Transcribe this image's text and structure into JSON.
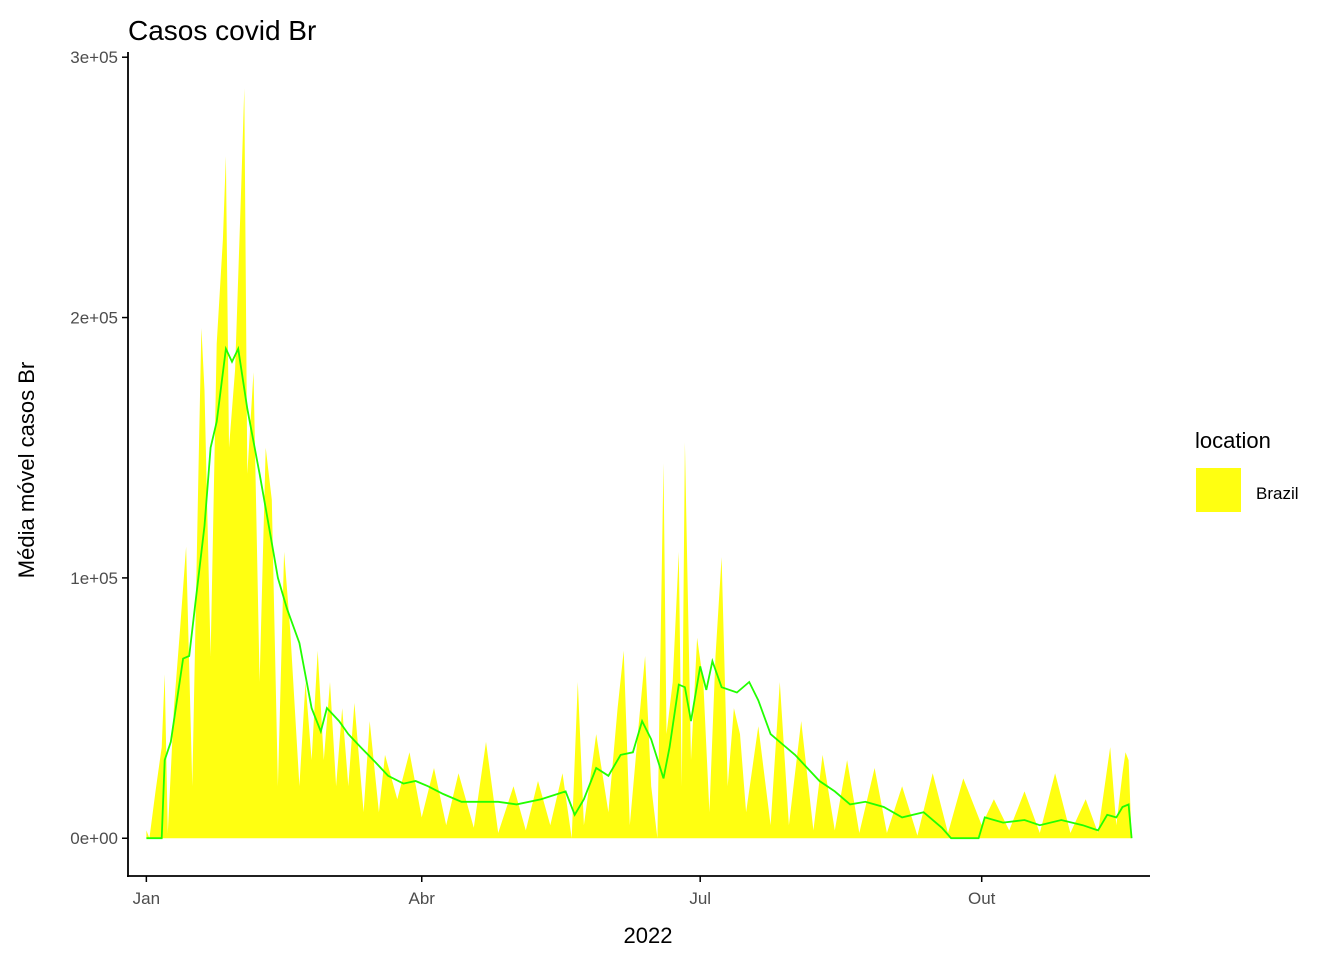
{
  "colors": {
    "area_fill": "#FFFF11",
    "line": "#22FF00",
    "axis": "#000000",
    "tick_text": "#4d4d4d"
  },
  "chart_data": {
    "type": "area",
    "title": "Casos covid Br",
    "xlabel": "2022",
    "ylabel": "Média móvel casos Br",
    "x_scale": "date",
    "xlim": [
      "2021-12-26",
      "2022-11-25"
    ],
    "ylim": [
      -14500,
      302000
    ],
    "grid": false,
    "x_ticks": [
      {
        "date": "2022-01-01",
        "label": "Jan"
      },
      {
        "date": "2022-04-01",
        "label": "Abr"
      },
      {
        "date": "2022-07-01",
        "label": "Jul"
      },
      {
        "date": "2022-10-01",
        "label": "Out"
      }
    ],
    "y_ticks": [
      {
        "value": 0,
        "label": "0e+00"
      },
      {
        "value": 100000,
        "label": "1e+05"
      },
      {
        "value": 200000,
        "label": "2e+05"
      },
      {
        "value": 300000,
        "label": "3e+05"
      }
    ],
    "legend": {
      "title": "location",
      "position": "right",
      "entries": [
        {
          "label": "Brazil"
        }
      ]
    },
    "series": [
      {
        "name": "Brazil",
        "kind": "area",
        "points": [
          [
            "2022-01-01",
            3000
          ],
          [
            "2022-01-02",
            0
          ],
          [
            "2022-01-04",
            18000
          ],
          [
            "2022-01-06",
            35000
          ],
          [
            "2022-01-07",
            63000
          ],
          [
            "2022-01-08",
            2000
          ],
          [
            "2022-01-10",
            50000
          ],
          [
            "2022-01-12",
            80000
          ],
          [
            "2022-01-14",
            112000
          ],
          [
            "2022-01-16",
            20000
          ],
          [
            "2022-01-18",
            140000
          ],
          [
            "2022-01-19",
            196000
          ],
          [
            "2022-01-20",
            172000
          ],
          [
            "2022-01-22",
            70000
          ],
          [
            "2022-01-24",
            190000
          ],
          [
            "2022-01-26",
            230000
          ],
          [
            "2022-01-27",
            262000
          ],
          [
            "2022-01-28",
            150000
          ],
          [
            "2022-01-30",
            180000
          ],
          [
            "2022-02-01",
            250000
          ],
          [
            "2022-02-02",
            288000
          ],
          [
            "2022-02-03",
            140000
          ],
          [
            "2022-02-05",
            179000
          ],
          [
            "2022-02-07",
            60000
          ],
          [
            "2022-02-09",
            150000
          ],
          [
            "2022-02-11",
            130000
          ],
          [
            "2022-02-13",
            20000
          ],
          [
            "2022-02-15",
            110000
          ],
          [
            "2022-02-17",
            80000
          ],
          [
            "2022-02-20",
            20000
          ],
          [
            "2022-02-22",
            60000
          ],
          [
            "2022-02-24",
            30000
          ],
          [
            "2022-02-26",
            72000
          ],
          [
            "2022-02-28",
            30000
          ],
          [
            "2022-03-02",
            60000
          ],
          [
            "2022-03-04",
            20000
          ],
          [
            "2022-03-06",
            50000
          ],
          [
            "2022-03-08",
            20000
          ],
          [
            "2022-03-10",
            52000
          ],
          [
            "2022-03-13",
            10000
          ],
          [
            "2022-03-15",
            45000
          ],
          [
            "2022-03-18",
            10000
          ],
          [
            "2022-03-20",
            32000
          ],
          [
            "2022-03-24",
            15000
          ],
          [
            "2022-03-28",
            33000
          ],
          [
            "2022-04-01",
            8000
          ],
          [
            "2022-04-05",
            27000
          ],
          [
            "2022-04-09",
            5000
          ],
          [
            "2022-04-13",
            25000
          ],
          [
            "2022-04-18",
            4000
          ],
          [
            "2022-04-22",
            37000
          ],
          [
            "2022-04-26",
            2000
          ],
          [
            "2022-05-01",
            20000
          ],
          [
            "2022-05-05",
            3000
          ],
          [
            "2022-05-09",
            22000
          ],
          [
            "2022-05-13",
            5000
          ],
          [
            "2022-05-17",
            25000
          ],
          [
            "2022-05-20",
            0
          ],
          [
            "2022-05-22",
            60000
          ],
          [
            "2022-05-24",
            5000
          ],
          [
            "2022-05-28",
            40000
          ],
          [
            "2022-06-01",
            10000
          ],
          [
            "2022-06-04",
            50000
          ],
          [
            "2022-06-06",
            72000
          ],
          [
            "2022-06-08",
            5000
          ],
          [
            "2022-06-11",
            45000
          ],
          [
            "2022-06-13",
            70000
          ],
          [
            "2022-06-15",
            20000
          ],
          [
            "2022-06-17",
            0
          ],
          [
            "2022-06-19",
            144000
          ],
          [
            "2022-06-20",
            40000
          ],
          [
            "2022-06-22",
            60000
          ],
          [
            "2022-06-24",
            110000
          ],
          [
            "2022-06-25",
            20000
          ],
          [
            "2022-06-26",
            152000
          ],
          [
            "2022-06-28",
            30000
          ],
          [
            "2022-06-30",
            77000
          ],
          [
            "2022-07-02",
            60000
          ],
          [
            "2022-07-04",
            10000
          ],
          [
            "2022-07-06",
            70000
          ],
          [
            "2022-07-08",
            108000
          ],
          [
            "2022-07-10",
            20000
          ],
          [
            "2022-07-12",
            50000
          ],
          [
            "2022-07-14",
            40000
          ],
          [
            "2022-07-16",
            10000
          ],
          [
            "2022-07-20",
            43000
          ],
          [
            "2022-07-24",
            5000
          ],
          [
            "2022-07-27",
            60000
          ],
          [
            "2022-07-30",
            5000
          ],
          [
            "2022-08-03",
            45000
          ],
          [
            "2022-08-07",
            3000
          ],
          [
            "2022-08-10",
            32000
          ],
          [
            "2022-08-14",
            3000
          ],
          [
            "2022-08-18",
            30000
          ],
          [
            "2022-08-22",
            2000
          ],
          [
            "2022-08-27",
            27000
          ],
          [
            "2022-08-31",
            2000
          ],
          [
            "2022-09-05",
            20000
          ],
          [
            "2022-09-10",
            1000
          ],
          [
            "2022-09-15",
            25000
          ],
          [
            "2022-09-20",
            2000
          ],
          [
            "2022-09-25",
            23000
          ],
          [
            "2022-10-01",
            5000
          ],
          [
            "2022-10-05",
            15000
          ],
          [
            "2022-10-10",
            3000
          ],
          [
            "2022-10-15",
            18000
          ],
          [
            "2022-10-20",
            2000
          ],
          [
            "2022-10-25",
            25000
          ],
          [
            "2022-10-30",
            2000
          ],
          [
            "2022-11-04",
            15000
          ],
          [
            "2022-11-08",
            2000
          ],
          [
            "2022-11-12",
            35000
          ],
          [
            "2022-11-14",
            5000
          ],
          [
            "2022-11-16",
            25000
          ],
          [
            "2022-11-17",
            33000
          ],
          [
            "2022-11-18",
            30000
          ],
          [
            "2022-11-19",
            0
          ]
        ]
      },
      {
        "name": "Brazil",
        "kind": "moving_average_line",
        "points": [
          [
            "2022-01-01",
            0
          ],
          [
            "2022-01-06",
            0
          ],
          [
            "2022-01-07",
            30000
          ],
          [
            "2022-01-09",
            37000
          ],
          [
            "2022-01-13",
            69000
          ],
          [
            "2022-01-15",
            70000
          ],
          [
            "2022-01-17",
            90000
          ],
          [
            "2022-01-20",
            120000
          ],
          [
            "2022-01-22",
            150000
          ],
          [
            "2022-01-24",
            160000
          ],
          [
            "2022-01-27",
            188000
          ],
          [
            "2022-01-29",
            183000
          ],
          [
            "2022-01-31",
            188000
          ],
          [
            "2022-02-03",
            165000
          ],
          [
            "2022-02-07",
            140000
          ],
          [
            "2022-02-10",
            120000
          ],
          [
            "2022-02-13",
            100000
          ],
          [
            "2022-02-16",
            88000
          ],
          [
            "2022-02-20",
            75000
          ],
          [
            "2022-02-24",
            50000
          ],
          [
            "2022-02-27",
            41000
          ],
          [
            "2022-03-01",
            50000
          ],
          [
            "2022-03-05",
            45000
          ],
          [
            "2022-03-08",
            40000
          ],
          [
            "2022-03-12",
            35000
          ],
          [
            "2022-03-17",
            29000
          ],
          [
            "2022-03-21",
            24000
          ],
          [
            "2022-03-26",
            21000
          ],
          [
            "2022-03-30",
            22000
          ],
          [
            "2022-04-03",
            20000
          ],
          [
            "2022-04-08",
            17000
          ],
          [
            "2022-04-14",
            14000
          ],
          [
            "2022-04-20",
            14000
          ],
          [
            "2022-04-26",
            14000
          ],
          [
            "2022-05-02",
            13000
          ],
          [
            "2022-05-10",
            15000
          ],
          [
            "2022-05-18",
            18000
          ],
          [
            "2022-05-21",
            9000
          ],
          [
            "2022-05-24",
            15000
          ],
          [
            "2022-05-28",
            27000
          ],
          [
            "2022-06-01",
            24000
          ],
          [
            "2022-06-05",
            32000
          ],
          [
            "2022-06-09",
            33000
          ],
          [
            "2022-06-12",
            45000
          ],
          [
            "2022-06-15",
            38000
          ],
          [
            "2022-06-19",
            23000
          ],
          [
            "2022-06-21",
            35000
          ],
          [
            "2022-06-24",
            59000
          ],
          [
            "2022-06-26",
            58000
          ],
          [
            "2022-06-28",
            45000
          ],
          [
            "2022-07-01",
            66000
          ],
          [
            "2022-07-03",
            57000
          ],
          [
            "2022-07-05",
            68000
          ],
          [
            "2022-07-08",
            58000
          ],
          [
            "2022-07-13",
            56000
          ],
          [
            "2022-07-17",
            60000
          ],
          [
            "2022-07-20",
            53000
          ],
          [
            "2022-07-24",
            40000
          ],
          [
            "2022-07-28",
            36000
          ],
          [
            "2022-08-01",
            32000
          ],
          [
            "2022-08-05",
            27000
          ],
          [
            "2022-08-09",
            22000
          ],
          [
            "2022-08-14",
            18000
          ],
          [
            "2022-08-19",
            13000
          ],
          [
            "2022-08-24",
            14000
          ],
          [
            "2022-08-30",
            12000
          ],
          [
            "2022-09-05",
            8000
          ],
          [
            "2022-09-12",
            10000
          ],
          [
            "2022-09-18",
            4000
          ],
          [
            "2022-09-21",
            0
          ],
          [
            "2022-09-30",
            0
          ],
          [
            "2022-10-02",
            8000
          ],
          [
            "2022-10-08",
            6000
          ],
          [
            "2022-10-15",
            7000
          ],
          [
            "2022-10-20",
            5000
          ],
          [
            "2022-10-27",
            7000
          ],
          [
            "2022-11-03",
            5000
          ],
          [
            "2022-11-08",
            3000
          ],
          [
            "2022-11-11",
            9000
          ],
          [
            "2022-11-14",
            8000
          ],
          [
            "2022-11-16",
            12000
          ],
          [
            "2022-11-18",
            13000
          ],
          [
            "2022-11-19",
            0
          ]
        ]
      }
    ]
  }
}
